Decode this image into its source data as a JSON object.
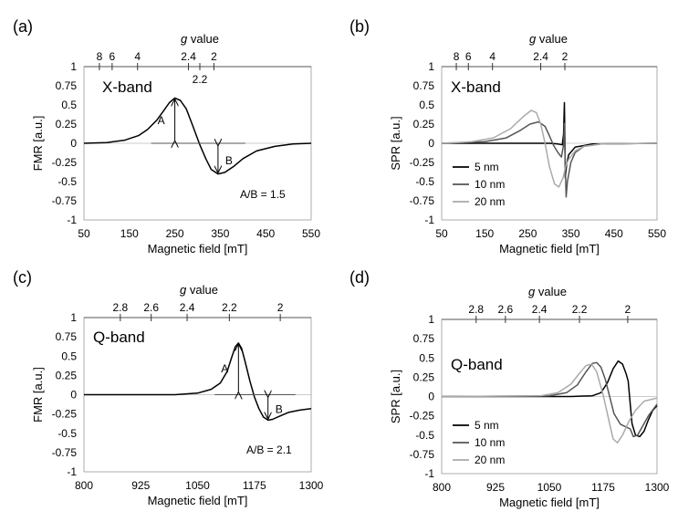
{
  "chart_data": [
    {
      "panel": "(a)",
      "type": "line",
      "band": "X-band",
      "xlabel": "Magnetic field [mT]",
      "ylabel": "FMR [a.u.]",
      "xlim": [
        50,
        550
      ],
      "ylim": [
        -1,
        1
      ],
      "xticks": [
        50,
        150,
        250,
        350,
        450,
        550
      ],
      "yticks": [
        -1,
        -0.75,
        -0.5,
        -0.25,
        0,
        0.25,
        0.5,
        0.75,
        1
      ],
      "ytick_labels": [
        "-1",
        "-0.75",
        "-0.5",
        "-0.25",
        "0",
        "0.25",
        "0.5",
        "0.75",
        "1"
      ],
      "g_axis": {
        "label_prefix": "g",
        "label_suffix": " value",
        "ticks": [
          {
            "label": "8",
            "field": 84
          },
          {
            "label": "6",
            "field": 112
          },
          {
            "label": "4",
            "field": 168
          },
          {
            "label": "2.4",
            "field": 280
          },
          {
            "label": "2.2",
            "field": 305
          },
          {
            "label": "2",
            "field": 336
          }
        ]
      },
      "series": [
        {
          "name": "FMR",
          "color": "#000000",
          "points": [
            [
              50,
              0.0
            ],
            [
              100,
              0.01
            ],
            [
              140,
              0.04
            ],
            [
              170,
              0.1
            ],
            [
              190,
              0.18
            ],
            [
              210,
              0.3
            ],
            [
              225,
              0.42
            ],
            [
              238,
              0.53
            ],
            [
              250,
              0.59
            ],
            [
              262,
              0.56
            ],
            [
              275,
              0.45
            ],
            [
              290,
              0.22
            ],
            [
              305,
              -0.02
            ],
            [
              318,
              -0.2
            ],
            [
              330,
              -0.34
            ],
            [
              345,
              -0.4
            ],
            [
              360,
              -0.38
            ],
            [
              380,
              -0.3
            ],
            [
              400,
              -0.2
            ],
            [
              430,
              -0.1
            ],
            [
              470,
              -0.04
            ],
            [
              510,
              -0.01
            ],
            [
              550,
              0.0
            ]
          ]
        }
      ],
      "annotations": {
        "A": "A",
        "B": "B",
        "ratio": "A/B = 1.5"
      }
    },
    {
      "panel": "(b)",
      "type": "line",
      "band": "X-band",
      "xlabel": "Magnetic field [mT]",
      "ylabel": "SPR [a.u.]",
      "xlim": [
        50,
        550
      ],
      "ylim": [
        -1,
        1
      ],
      "xticks": [
        50,
        150,
        250,
        350,
        450,
        550
      ],
      "yticks": [
        -1,
        -0.75,
        -0.5,
        -0.25,
        0,
        0.25,
        0.5,
        0.75,
        1
      ],
      "ytick_labels": [
        "-1",
        "-0.75",
        "-0.5",
        "-0.25",
        "0",
        "0.25",
        "0.5",
        "0.75",
        "1"
      ],
      "g_axis": {
        "label_prefix": "g",
        "label_suffix": " value",
        "ticks": [
          {
            "label": "8",
            "field": 84
          },
          {
            "label": "6",
            "field": 112
          },
          {
            "label": "4",
            "field": 168
          },
          {
            "label": "2.4",
            "field": 280
          },
          {
            "label": "2",
            "field": 336
          }
        ]
      },
      "series": [
        {
          "name": "5 nm",
          "color": "#000000",
          "points": [
            [
              50,
              0.0
            ],
            [
              300,
              0.0
            ],
            [
              320,
              -0.01
            ],
            [
              330,
              -0.02
            ],
            [
              333,
              0.12
            ],
            [
              335,
              0.53
            ],
            [
              336,
              0.1
            ],
            [
              337,
              -0.45
            ],
            [
              340,
              -0.28
            ],
            [
              345,
              -0.15
            ],
            [
              360,
              -0.05
            ],
            [
              400,
              -0.01
            ],
            [
              550,
              0.0
            ]
          ]
        },
        {
          "name": "10 nm",
          "color": "#555555",
          "points": [
            [
              50,
              0.0
            ],
            [
              150,
              0.02
            ],
            [
              200,
              0.07
            ],
            [
              230,
              0.16
            ],
            [
              255,
              0.25
            ],
            [
              275,
              0.28
            ],
            [
              290,
              0.22
            ],
            [
              300,
              0.1
            ],
            [
              310,
              -0.03
            ],
            [
              320,
              -0.12
            ],
            [
              328,
              -0.18
            ],
            [
              333,
              -0.02
            ],
            [
              335,
              0.26
            ],
            [
              337,
              -0.3
            ],
            [
              339,
              -0.7
            ],
            [
              342,
              -0.5
            ],
            [
              350,
              -0.25
            ],
            [
              360,
              -0.12
            ],
            [
              380,
              -0.04
            ],
            [
              420,
              -0.01
            ],
            [
              550,
              0.0
            ]
          ]
        },
        {
          "name": "20 nm",
          "color": "#aaaaaa",
          "points": [
            [
              50,
              0.0
            ],
            [
              120,
              0.02
            ],
            [
              170,
              0.07
            ],
            [
              210,
              0.19
            ],
            [
              240,
              0.35
            ],
            [
              258,
              0.43
            ],
            [
              270,
              0.4
            ],
            [
              280,
              0.25
            ],
            [
              290,
              0.0
            ],
            [
              300,
              -0.3
            ],
            [
              312,
              -0.53
            ],
            [
              322,
              -0.57
            ],
            [
              332,
              -0.45
            ],
            [
              338,
              -0.3
            ],
            [
              345,
              -0.21
            ],
            [
              360,
              -0.1
            ],
            [
              380,
              -0.04
            ],
            [
              420,
              -0.01
            ],
            [
              550,
              0.0
            ]
          ]
        }
      ],
      "legend": [
        "5 nm",
        "10 nm",
        "20 nm"
      ]
    },
    {
      "panel": "(c)",
      "type": "line",
      "band": "Q-band",
      "xlabel": "Magnetic field [mT]",
      "ylabel": "FMR [a.u.]",
      "xlim": [
        800,
        1300
      ],
      "ylim": [
        -1,
        1
      ],
      "xticks": [
        800,
        925,
        1050,
        1175,
        1300
      ],
      "yticks": [
        -1,
        -0.75,
        -0.5,
        -0.25,
        0,
        0.25,
        0.5,
        0.75,
        1
      ],
      "ytick_labels": [
        "-1",
        "-0.75",
        "-0.5",
        "-0.25",
        "0",
        "0.25",
        "0.5",
        "0.75",
        "1"
      ],
      "g_axis": {
        "label_prefix": "g",
        "label_suffix": " value",
        "ticks": [
          {
            "label": "2.8",
            "field": 880
          },
          {
            "label": "2.6",
            "field": 948
          },
          {
            "label": "2.4",
            "field": 1027
          },
          {
            "label": "2.2",
            "field": 1120
          },
          {
            "label": "2",
            "field": 1232
          }
        ]
      },
      "series": [
        {
          "name": "FMR",
          "color": "#000000",
          "points": [
            [
              800,
              0.0
            ],
            [
              1000,
              0.0
            ],
            [
              1050,
              0.02
            ],
            [
              1080,
              0.07
            ],
            [
              1100,
              0.15
            ],
            [
              1115,
              0.3
            ],
            [
              1125,
              0.48
            ],
            [
              1133,
              0.62
            ],
            [
              1140,
              0.67
            ],
            [
              1147,
              0.6
            ],
            [
              1155,
              0.42
            ],
            [
              1165,
              0.18
            ],
            [
              1175,
              -0.03
            ],
            [
              1185,
              -0.18
            ],
            [
              1195,
              -0.29
            ],
            [
              1205,
              -0.33
            ],
            [
              1215,
              -0.32
            ],
            [
              1230,
              -0.28
            ],
            [
              1250,
              -0.23
            ],
            [
              1275,
              -0.2
            ],
            [
              1300,
              -0.18
            ]
          ]
        }
      ],
      "annotations": {
        "A": "A",
        "B": "B",
        "ratio": "A/B = 2.1"
      }
    },
    {
      "panel": "(d)",
      "type": "line",
      "band": "Q-band",
      "xlabel": "Magnetic field [mT]",
      "ylabel": "SPR [a.u.]",
      "xlim": [
        800,
        1300
      ],
      "ylim": [
        -1,
        1
      ],
      "xticks": [
        800,
        925,
        1050,
        1175,
        1300
      ],
      "yticks": [
        -1,
        -0.75,
        -0.5,
        -0.25,
        0,
        0.25,
        0.5,
        0.75,
        1
      ],
      "ytick_labels": [
        "-1",
        "-0.75",
        "-0.5",
        "-0.25",
        "0",
        "0.25",
        "0.5",
        "0.75",
        "1"
      ],
      "g_axis": {
        "label_prefix": "g",
        "label_suffix": " value",
        "ticks": [
          {
            "label": "2.8",
            "field": 880
          },
          {
            "label": "2.6",
            "field": 948
          },
          {
            "label": "2.4",
            "field": 1027
          },
          {
            "label": "2.2",
            "field": 1120
          },
          {
            "label": "2",
            "field": 1232
          }
        ]
      },
      "series": [
        {
          "name": "5 nm",
          "color": "#000000",
          "points": [
            [
              800,
              0.0
            ],
            [
              1100,
              0.0
            ],
            [
              1150,
              0.01
            ],
            [
              1170,
              0.05
            ],
            [
              1185,
              0.18
            ],
            [
              1198,
              0.36
            ],
            [
              1210,
              0.46
            ],
            [
              1220,
              0.42
            ],
            [
              1228,
              0.3
            ],
            [
              1233,
              0.2
            ],
            [
              1237,
              -0.05
            ],
            [
              1242,
              -0.35
            ],
            [
              1250,
              -0.5
            ],
            [
              1260,
              -0.52
            ],
            [
              1270,
              -0.45
            ],
            [
              1280,
              -0.3
            ],
            [
              1290,
              -0.18
            ],
            [
              1300,
              -0.12
            ]
          ]
        },
        {
          "name": "10 nm",
          "color": "#555555",
          "points": [
            [
              800,
              0.0
            ],
            [
              1050,
              0.01
            ],
            [
              1090,
              0.05
            ],
            [
              1115,
              0.15
            ],
            [
              1135,
              0.32
            ],
            [
              1150,
              0.43
            ],
            [
              1160,
              0.44
            ],
            [
              1170,
              0.38
            ],
            [
              1180,
              0.22
            ],
            [
              1190,
              0.0
            ],
            [
              1200,
              -0.22
            ],
            [
              1215,
              -0.36
            ],
            [
              1230,
              -0.4
            ],
            [
              1238,
              -0.42
            ],
            [
              1245,
              -0.52
            ],
            [
              1255,
              -0.5
            ],
            [
              1265,
              -0.4
            ],
            [
              1280,
              -0.25
            ],
            [
              1300,
              -0.1
            ]
          ]
        },
        {
          "name": "20 nm",
          "color": "#aaaaaa",
          "points": [
            [
              800,
              0.0
            ],
            [
              1030,
              0.01
            ],
            [
              1070,
              0.05
            ],
            [
              1100,
              0.16
            ],
            [
              1120,
              0.3
            ],
            [
              1135,
              0.4
            ],
            [
              1148,
              0.42
            ],
            [
              1160,
              0.32
            ],
            [
              1175,
              0.02
            ],
            [
              1188,
              -0.3
            ],
            [
              1198,
              -0.55
            ],
            [
              1208,
              -0.6
            ],
            [
              1220,
              -0.5
            ],
            [
              1235,
              -0.32
            ],
            [
              1250,
              -0.18
            ],
            [
              1270,
              -0.06
            ],
            [
              1300,
              -0.02
            ]
          ]
        }
      ],
      "legend": [
        "5 nm",
        "10 nm",
        "20 nm"
      ]
    }
  ]
}
